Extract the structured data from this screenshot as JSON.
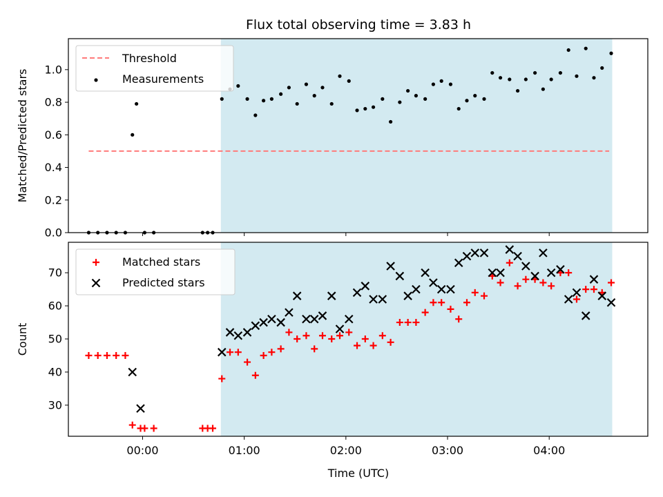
{
  "chart_data": [
    {
      "type": "scatter",
      "title": "Flux total observing time = 3.83 h",
      "xlabel": "",
      "ylabel": "Matched/Predicted stars",
      "ylim": [
        0,
        1.19
      ],
      "yticks": [
        "0.0",
        "0.2",
        "0.4",
        "0.6",
        "0.8",
        "1.0"
      ],
      "xrange_hours": [
        -0.73,
        4.97
      ],
      "x_unit": "hours after 00:00 UTC",
      "shaded_region_hours": [
        0.77,
        4.62
      ],
      "shaded_color": "#d3eaf1",
      "legend_position": "upper-left",
      "threshold": {
        "name": "Threshold",
        "y": 0.5,
        "x": [
          -0.53,
          4.59
        ],
        "color": "#ff7a7a",
        "style": "dashed"
      },
      "series": [
        {
          "name": "Measurements",
          "marker": "dot",
          "color": "#000000",
          "x": [
            -0.53,
            -0.44,
            -0.35,
            -0.26,
            -0.17,
            -0.1,
            -0.06,
            0.02,
            0.11,
            0.59,
            0.64,
            0.69,
            0.78,
            0.86,
            0.94,
            1.03,
            1.11,
            1.19,
            1.27,
            1.36,
            1.44,
            1.52,
            1.61,
            1.69,
            1.77,
            1.86,
            1.94,
            2.03,
            2.11,
            2.19,
            2.27,
            2.36,
            2.44,
            2.53,
            2.61,
            2.69,
            2.78,
            2.86,
            2.94,
            3.03,
            3.11,
            3.19,
            3.27,
            3.36,
            3.44,
            3.52,
            3.61,
            3.69,
            3.77,
            3.86,
            3.94,
            4.02,
            4.11,
            4.19,
            4.27,
            4.36,
            4.44,
            4.52,
            4.61
          ],
          "y": [
            0,
            0,
            0,
            0,
            0,
            0.6,
            0.79,
            0,
            0,
            0,
            0,
            0,
            0.82,
            0.88,
            0.9,
            0.82,
            0.72,
            0.81,
            0.82,
            0.85,
            0.89,
            0.79,
            0.91,
            0.84,
            0.89,
            0.79,
            0.96,
            0.93,
            0.75,
            0.76,
            0.77,
            0.82,
            0.68,
            0.8,
            0.87,
            0.84,
            0.82,
            0.91,
            0.93,
            0.91,
            0.76,
            0.81,
            0.84,
            0.82,
            0.98,
            0.95,
            0.94,
            0.87,
            0.94,
            0.98,
            0.88,
            0.94,
            0.98,
            1.12,
            0.96,
            1.13,
            0.95,
            1.01,
            1.1
          ]
        }
      ]
    },
    {
      "type": "scatter",
      "title": "",
      "xlabel": "Time (UTC)",
      "ylabel": "Count",
      "ylim": [
        20.6,
        79.2
      ],
      "yticks": [
        "30",
        "40",
        "50",
        "60",
        "70"
      ],
      "xticks": [
        "00:00",
        "01:00",
        "02:00",
        "03:00",
        "04:00"
      ],
      "xrange_hours": [
        -0.73,
        4.97
      ],
      "x_unit": "hours after 00:00 UTC",
      "shaded_region_hours": [
        0.77,
        4.62
      ],
      "shaded_color": "#d3eaf1",
      "legend_position": "upper-left",
      "series": [
        {
          "name": "Matched stars",
          "marker": "plus",
          "color": "#ff0000",
          "x": [
            -0.53,
            -0.44,
            -0.35,
            -0.26,
            -0.17,
            -0.1,
            -0.02,
            0.02,
            0.11,
            0.59,
            0.64,
            0.69,
            0.78,
            0.86,
            0.94,
            1.03,
            1.11,
            1.19,
            1.27,
            1.36,
            1.44,
            1.52,
            1.61,
            1.69,
            1.77,
            1.86,
            1.94,
            2.03,
            2.11,
            2.19,
            2.27,
            2.36,
            2.44,
            2.53,
            2.61,
            2.69,
            2.78,
            2.86,
            2.94,
            3.03,
            3.11,
            3.19,
            3.27,
            3.36,
            3.44,
            3.52,
            3.61,
            3.69,
            3.77,
            3.86,
            3.94,
            4.02,
            4.11,
            4.19,
            4.27,
            4.36,
            4.44,
            4.52,
            4.61
          ],
          "y": [
            45,
            45,
            45,
            45,
            45,
            24,
            23,
            23,
            23,
            23,
            23,
            23,
            38,
            46,
            46,
            43,
            39,
            45,
            46,
            47,
            52,
            50,
            51,
            47,
            51,
            50,
            51,
            52,
            48,
            50,
            48,
            51,
            49,
            55,
            55,
            55,
            58,
            61,
            61,
            59,
            56,
            61,
            64,
            63,
            69,
            67,
            73,
            66,
            68,
            68,
            67,
            66,
            70,
            70,
            62,
            65,
            65,
            64,
            67
          ]
        },
        {
          "name": "Predicted stars",
          "marker": "x",
          "color": "#000000",
          "x": [
            -0.1,
            -0.02,
            0.78,
            0.86,
            0.94,
            1.03,
            1.11,
            1.19,
            1.27,
            1.36,
            1.44,
            1.52,
            1.61,
            1.69,
            1.77,
            1.86,
            1.94,
            2.03,
            2.11,
            2.19,
            2.27,
            2.36,
            2.44,
            2.53,
            2.61,
            2.69,
            2.78,
            2.86,
            2.94,
            3.03,
            3.11,
            3.19,
            3.27,
            3.36,
            3.44,
            3.52,
            3.61,
            3.69,
            3.77,
            3.86,
            3.94,
            4.02,
            4.11,
            4.19,
            4.27,
            4.36,
            4.44,
            4.52,
            4.61
          ],
          "y": [
            40,
            29,
            46,
            52,
            51,
            52,
            54,
            55,
            56,
            55,
            58,
            63,
            56,
            56,
            57,
            63,
            53,
            56,
            64,
            66,
            62,
            62,
            72,
            69,
            63,
            65,
            70,
            67,
            65,
            65,
            73,
            75,
            76,
            76,
            70,
            70,
            77,
            75,
            72,
            69,
            76,
            70,
            71,
            62,
            64,
            57,
            68,
            63,
            61
          ]
        }
      ]
    }
  ]
}
